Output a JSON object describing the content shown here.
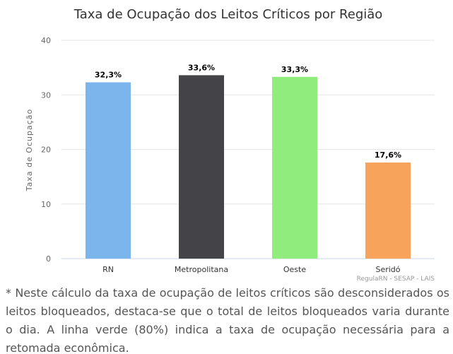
{
  "chart_data": {
    "type": "bar",
    "title": "Taxa de Ocupação dos Leitos Críticos por Região",
    "xlabel": "",
    "ylabel": "Taxa de Ocupação",
    "categories": [
      "RN",
      "Metropolitana",
      "Oeste",
      "Seridó"
    ],
    "values": [
      32.3,
      33.6,
      33.3,
      17.6
    ],
    "data_labels": [
      "32,3%",
      "33,6%",
      "33,3%",
      "17,6%"
    ],
    "colors": [
      "#7cb5ec",
      "#434348",
      "#90ed7d",
      "#f7a35c"
    ],
    "ylim": [
      0,
      40
    ],
    "yticks": [
      0,
      10,
      20,
      30,
      40
    ],
    "grid": true,
    "legend": "none",
    "credits": "RegulaRN - SESAP - LAIS"
  },
  "footnote": "* Neste cálculo da taxa de ocupação de leitos críticos são desconsiderados os leitos bloqueados, destaca-se que o total de leitos bloqueados varia durante o dia. A linha verde (80%) indica a taxa de ocupação necessária para a retomada econômica."
}
